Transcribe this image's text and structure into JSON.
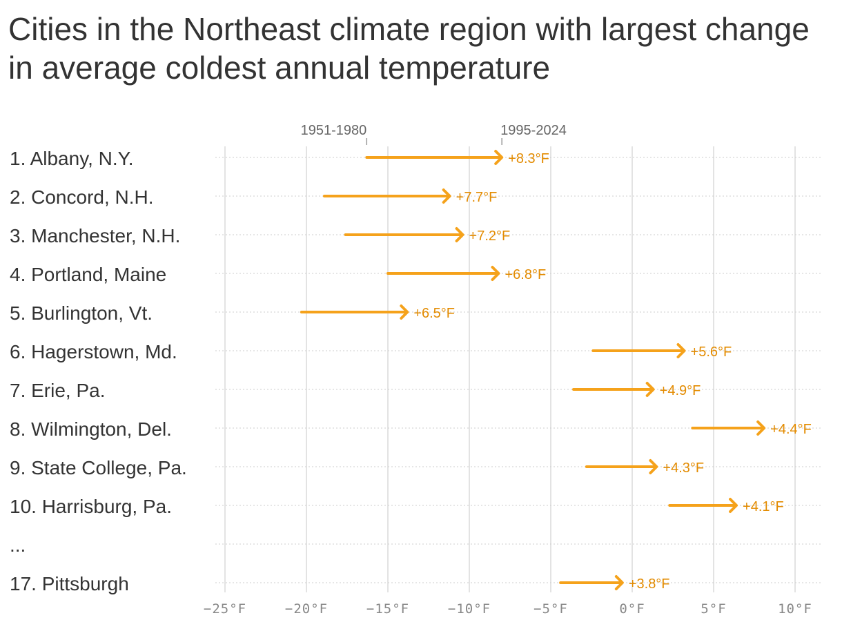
{
  "chart_data": {
    "type": "arrow-dot",
    "title": "Cities in the Northeast climate region with largest change in average coldest annual temperature",
    "legend": {
      "start_label": "1951-1980",
      "end_label": "1995-2024"
    },
    "xlim": [
      -25,
      10
    ],
    "x_ticks": [
      -25,
      -20,
      -15,
      -10,
      -5,
      0,
      5,
      10
    ],
    "x_tick_labels": [
      "−25°F",
      "−20°F",
      "−15°F",
      "−10°F",
      "−5°F",
      "0°F",
      "5°F",
      "10°F"
    ],
    "grid": true,
    "color": "#f5a21b",
    "label_color": "#e38b00",
    "rows": [
      {
        "label": "1. Albany, N.Y.",
        "start": -16.3,
        "end": -8.0,
        "change": "+8.3°F"
      },
      {
        "label": "2. Concord, N.H.",
        "start": -18.9,
        "end": -11.2,
        "change": "+7.7°F"
      },
      {
        "label": "3. Manchester, N.H.",
        "start": -17.6,
        "end": -10.4,
        "change": "+7.2°F"
      },
      {
        "label": "4. Portland, Maine",
        "start": -15.0,
        "end": -8.2,
        "change": "+6.8°F"
      },
      {
        "label": "5. Burlington, Vt.",
        "start": -20.3,
        "end": -13.8,
        "change": "+6.5°F"
      },
      {
        "label": "6. Hagerstown, Md.",
        "start": -2.4,
        "end": 3.2,
        "change": "+5.6°F"
      },
      {
        "label": "7. Erie, Pa.",
        "start": -3.6,
        "end": 1.3,
        "change": "+4.9°F"
      },
      {
        "label": "8. Wilmington, Del.",
        "start": 3.7,
        "end": 8.1,
        "change": "+4.4°F"
      },
      {
        "label": "9. State College, Pa.",
        "start": -2.8,
        "end": 1.5,
        "change": "+4.3°F"
      },
      {
        "label": "10. Harrisburg, Pa.",
        "start": 2.3,
        "end": 6.4,
        "change": "+4.1°F"
      },
      {
        "label": "...",
        "start": null,
        "end": null,
        "change": ""
      },
      {
        "label": "17. Pittsburgh",
        "start": -4.4,
        "end": -0.6,
        "change": "+3.8°F"
      }
    ]
  }
}
